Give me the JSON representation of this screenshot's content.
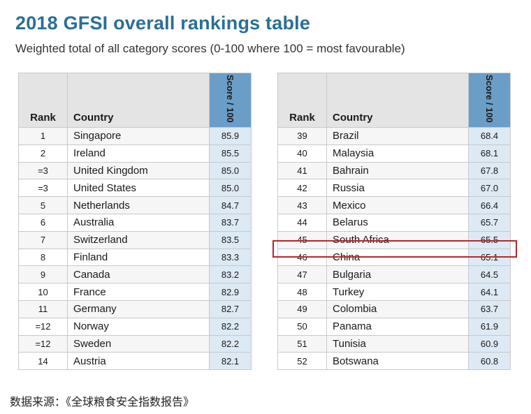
{
  "title": "2018 GFSI overall rankings table",
  "subtitle": "Weighted total of all category scores (0-100 where 100 = most favourable)",
  "headers": {
    "rank": "Rank",
    "country": "Country",
    "score": "Score / 100"
  },
  "left_rows": [
    {
      "rank": "1",
      "country": "Singapore",
      "score": "85.9"
    },
    {
      "rank": "2",
      "country": "Ireland",
      "score": "85.5"
    },
    {
      "rank": "=3",
      "country": "United Kingdom",
      "score": "85.0"
    },
    {
      "rank": "=3",
      "country": "United States",
      "score": "85.0"
    },
    {
      "rank": "5",
      "country": "Netherlands",
      "score": "84.7"
    },
    {
      "rank": "6",
      "country": "Australia",
      "score": "83.7"
    },
    {
      "rank": "7",
      "country": "Switzerland",
      "score": "83.5"
    },
    {
      "rank": "8",
      "country": "Finland",
      "score": "83.3"
    },
    {
      "rank": "9",
      "country": "Canada",
      "score": "83.2"
    },
    {
      "rank": "10",
      "country": "France",
      "score": "82.9"
    },
    {
      "rank": "11",
      "country": "Germany",
      "score": "82.7"
    },
    {
      "rank": "=12",
      "country": "Norway",
      "score": "82.2"
    },
    {
      "rank": "=12",
      "country": "Sweden",
      "score": "82.2"
    },
    {
      "rank": "14",
      "country": "Austria",
      "score": "82.1"
    }
  ],
  "right_rows": [
    {
      "rank": "39",
      "country": "Brazil",
      "score": "68.4"
    },
    {
      "rank": "40",
      "country": "Malaysia",
      "score": "68.1"
    },
    {
      "rank": "41",
      "country": "Bahrain",
      "score": "67.8"
    },
    {
      "rank": "42",
      "country": "Russia",
      "score": "67.0"
    },
    {
      "rank": "43",
      "country": "Mexico",
      "score": "66.4"
    },
    {
      "rank": "44",
      "country": "Belarus",
      "score": "65.7"
    },
    {
      "rank": "45",
      "country": "South Africa",
      "score": "65.5"
    },
    {
      "rank": "46",
      "country": "China",
      "score": "65.1"
    },
    {
      "rank": "47",
      "country": "Bulgaria",
      "score": "64.5"
    },
    {
      "rank": "48",
      "country": "Turkey",
      "score": "64.1"
    },
    {
      "rank": "49",
      "country": "Colombia",
      "score": "63.7"
    },
    {
      "rank": "50",
      "country": "Panama",
      "score": "61.9"
    },
    {
      "rank": "51",
      "country": "Tunisia",
      "score": "60.9"
    },
    {
      "rank": "52",
      "country": "Botswana",
      "score": "60.8"
    }
  ],
  "source": "数据来源：《全球粮食安全指数报告》",
  "colors": {
    "title": "#2a6f96",
    "score_header": "#6b9ec7",
    "score_cell": "#dde9f3",
    "highlight": "#b5282b"
  }
}
